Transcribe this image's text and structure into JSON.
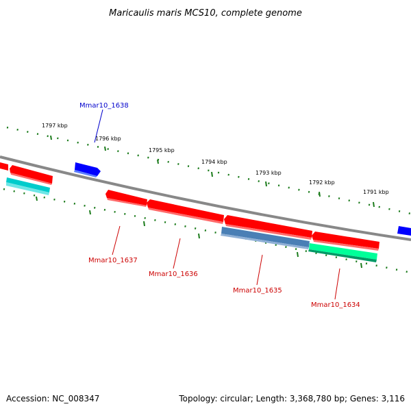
{
  "title": "Maricaulis maris MCS10, complete genome",
  "footer": {
    "accession": "Accession: NC_008347",
    "summary": "Topology: circular; Length: 3,368,780 bp; Genes: 3,116"
  },
  "ticks": [
    "1797 kbp",
    "1796 kbp",
    "1795 kbp",
    "1794 kbp",
    "1793 kbp",
    "1792 kbp",
    "1791 kbp"
  ],
  "gene_labels": {
    "mmar10_1638": "Mmar10_1638",
    "mmar10_1637": "Mmar10_1637",
    "mmar10_1636": "Mmar10_1636",
    "mmar10_1635": "Mmar10_1635",
    "mmar10_1634": "Mmar10_1634"
  },
  "colors": {
    "backbone": "#888888",
    "forward_gene": "#0000ff",
    "reverse_gene": "#ff0000",
    "reverse_gene_light": "#ff6a6a",
    "cds_cyan": "#00cccc",
    "cds_steelblue": "#4a7fb5",
    "cds_green": "#00ff99",
    "tick_dots": "#1a7a1a",
    "label_blue": "#0000cc",
    "label_red": "#cc0000"
  }
}
